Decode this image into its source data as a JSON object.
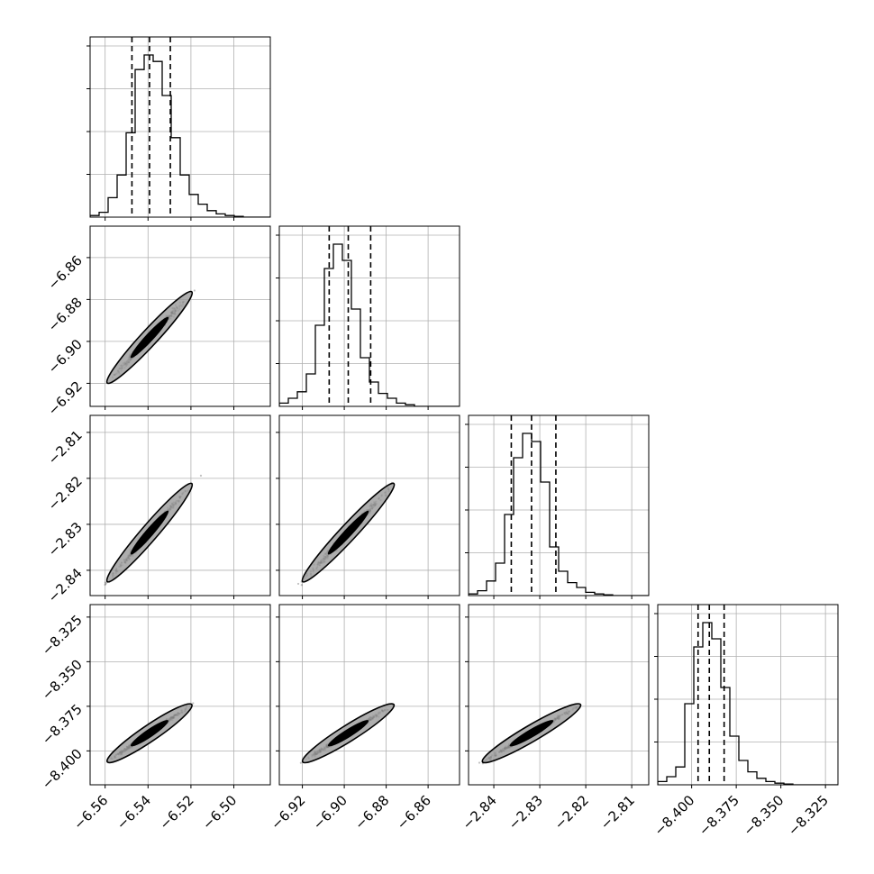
{
  "chart_data": {
    "type": "corner",
    "parameters": [
      {
        "lim": [
          -6.567,
          -6.483
        ],
        "ticks": [
          -6.56,
          -6.54,
          -6.52,
          -6.5
        ],
        "tick_labels": [
          "−6.56",
          "−6.54",
          "−6.52",
          "−6.50"
        ],
        "quantiles": [
          -6.5475,
          -6.5393,
          -6.5296
        ]
      },
      {
        "lim": [
          -6.931,
          -6.845
        ],
        "ticks": [
          -6.92,
          -6.9,
          -6.88,
          -6.86
        ],
        "tick_labels": [
          "−6.92",
          "−6.90",
          "−6.88",
          "−6.86"
        ],
        "quantiles": [
          -6.9072,
          -6.8981,
          -6.8874
        ]
      },
      {
        "lim": [
          -2.8455,
          -2.8063
        ],
        "ticks": [
          -2.84,
          -2.83,
          -2.82,
          -2.81
        ],
        "tick_labels": [
          "−2.84",
          "−2.83",
          "−2.82",
          "−2.81"
        ],
        "quantiles": [
          -2.8362,
          -2.8318,
          -2.8265
        ]
      },
      {
        "lim": [
          -8.419,
          -8.318
        ],
        "ticks": [
          -8.4,
          -8.375,
          -8.35,
          -8.325
        ],
        "tick_labels": [
          "−8.400",
          "−8.375",
          "−8.350",
          "−8.325"
        ],
        "quantiles": [
          -8.3964,
          -8.3901,
          -8.3818
        ]
      }
    ],
    "histograms": [
      {
        "max": 1.0,
        "counts": [
          0.01,
          0.03,
          0.12,
          0.26,
          0.52,
          0.91,
          1.0,
          0.96,
          0.75,
          0.49,
          0.26,
          0.14,
          0.08,
          0.04,
          0.02,
          0.01,
          0.005,
          0,
          0,
          0
        ]
      },
      {
        "max": 1.0,
        "counts": [
          0.02,
          0.05,
          0.09,
          0.2,
          0.5,
          0.85,
          1.0,
          0.9,
          0.6,
          0.3,
          0.15,
          0.08,
          0.05,
          0.02,
          0.01,
          0,
          0,
          0,
          0,
          0
        ]
      },
      {
        "max": 1.0,
        "counts": [
          0.01,
          0.03,
          0.09,
          0.2,
          0.5,
          0.85,
          1.0,
          0.95,
          0.7,
          0.3,
          0.15,
          0.08,
          0.05,
          0.02,
          0.01,
          0.005,
          0,
          0,
          0,
          0
        ]
      },
      {
        "max": 1.0,
        "counts": [
          0.02,
          0.05,
          0.11,
          0.5,
          0.85,
          1.0,
          0.9,
          0.6,
          0.3,
          0.15,
          0.08,
          0.04,
          0.02,
          0.01,
          0.005,
          0,
          0,
          0,
          0,
          0
        ]
      }
    ],
    "scatter_extent": {
      "from_quantile": -6,
      "to_quantile": 7
    },
    "grid": true,
    "title": "",
    "xlabel": "",
    "ylabel": ""
  }
}
